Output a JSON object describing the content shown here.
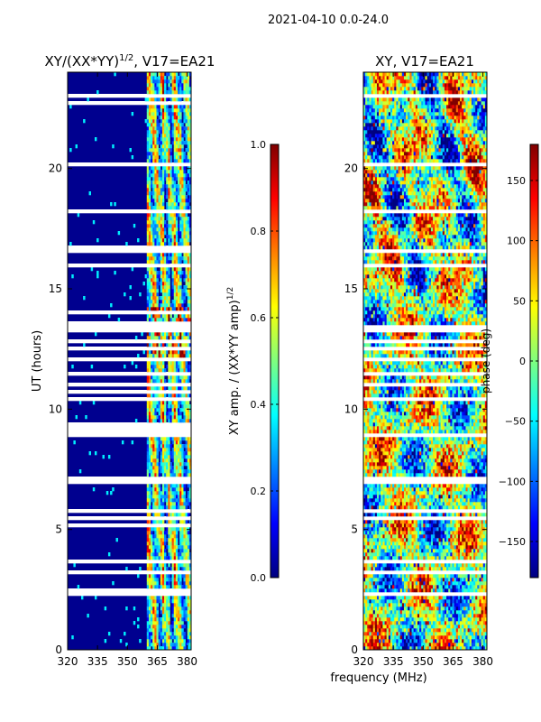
{
  "figure": {
    "suptitle": "2021-04-10 0.0-24.0",
    "shared_xlabel": "frequency (MHz)"
  },
  "chart_data": [
    {
      "type": "heatmap",
      "title_main": "XY/(XX*YY)",
      "title_sup": "1/2",
      "title_rest": ", V17=EA21",
      "xlabel": "",
      "ylabel": "UT (hours)",
      "xlim": [
        320,
        382
      ],
      "ylim": [
        0,
        24
      ],
      "xticks": [
        320,
        335,
        350,
        365,
        380
      ],
      "yticks": [
        0,
        5,
        10,
        15,
        20
      ],
      "rfi_free_band": [
        360,
        382
      ],
      "colorbar": {
        "label_main": "XY amp. / (XX*YY amp)",
        "label_sup": "1/2",
        "range": [
          0.0,
          1.0
        ],
        "ticks": [
          "0.0",
          "0.2",
          "0.4",
          "0.6",
          "0.8",
          "1.0"
        ],
        "colormap": "jet"
      }
    },
    {
      "type": "heatmap",
      "title_main": "XY, V17=EA21",
      "title_sup": "",
      "title_rest": "",
      "xlabel": "frequency (MHz)",
      "ylabel": "",
      "xlim": [
        320,
        382
      ],
      "ylim": [
        0,
        24
      ],
      "xticks": [
        320,
        335,
        350,
        365,
        380
      ],
      "yticks": [
        0,
        5,
        10,
        15,
        20
      ],
      "colorbar": {
        "label_main": "phase (deg)",
        "label_sup": "",
        "range": [
          -180,
          180
        ],
        "ticks": [
          "−150",
          "−100",
          "−50",
          "0",
          "50",
          "100",
          "150"
        ],
        "colormap": "jet"
      }
    }
  ],
  "colors": {
    "bg_low": "#00008f",
    "gap": "#ffffff",
    "axis": "#000000"
  }
}
